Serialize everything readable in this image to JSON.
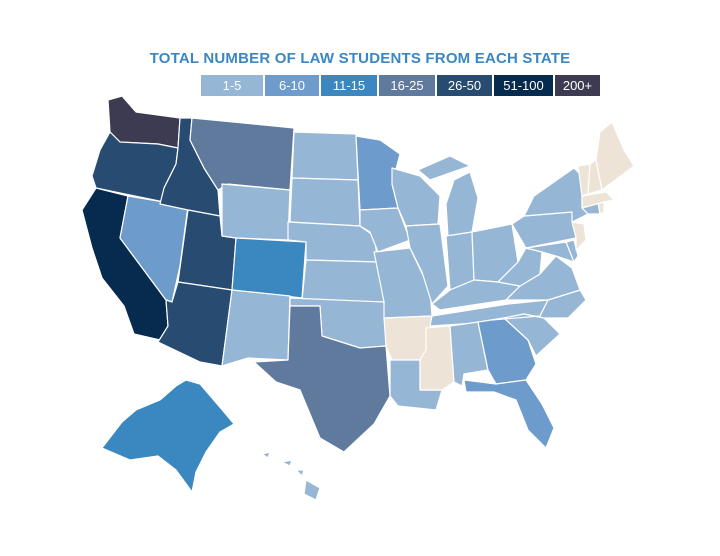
{
  "title": "TOTAL NUMBER OF LAW STUDENTS FROM EACH STATE",
  "legend": [
    {
      "label": "1-5",
      "color": "#96b6d6"
    },
    {
      "label": "6-10",
      "color": "#6d9bcb"
    },
    {
      "label": "11-15",
      "color": "#3b87bf"
    },
    {
      "label": "16-25",
      "color": "#5f7a9c"
    },
    {
      "label": "26-50",
      "color": "#284c71"
    },
    {
      "label": "51-100",
      "color": "#072a4f"
    },
    {
      "label": "200+",
      "color": "#3d3b52"
    }
  ],
  "no_data_color": "#ede3d6",
  "states": [
    {
      "id": "WA",
      "bin": "200+"
    },
    {
      "id": "OR",
      "bin": "26-50"
    },
    {
      "id": "CA",
      "bin": "51-100"
    },
    {
      "id": "ID",
      "bin": "26-50"
    },
    {
      "id": "NV",
      "bin": "6-10"
    },
    {
      "id": "UT",
      "bin": "26-50"
    },
    {
      "id": "AZ",
      "bin": "26-50"
    },
    {
      "id": "MT",
      "bin": "16-25"
    },
    {
      "id": "WY",
      "bin": "1-5"
    },
    {
      "id": "CO",
      "bin": "11-15"
    },
    {
      "id": "NM",
      "bin": "1-5"
    },
    {
      "id": "ND",
      "bin": "1-5"
    },
    {
      "id": "SD",
      "bin": "1-5"
    },
    {
      "id": "NE",
      "bin": "1-5"
    },
    {
      "id": "KS",
      "bin": "1-5"
    },
    {
      "id": "OK",
      "bin": "1-5"
    },
    {
      "id": "TX",
      "bin": "16-25"
    },
    {
      "id": "MN",
      "bin": "6-10"
    },
    {
      "id": "IA",
      "bin": "1-5"
    },
    {
      "id": "MO",
      "bin": "1-5"
    },
    {
      "id": "AR",
      "bin": "none"
    },
    {
      "id": "LA",
      "bin": "1-5"
    },
    {
      "id": "WI",
      "bin": "1-5"
    },
    {
      "id": "IL",
      "bin": "1-5"
    },
    {
      "id": "MI",
      "bin": "1-5"
    },
    {
      "id": "IN",
      "bin": "1-5"
    },
    {
      "id": "OH",
      "bin": "1-5"
    },
    {
      "id": "KY",
      "bin": "1-5"
    },
    {
      "id": "TN",
      "bin": "1-5"
    },
    {
      "id": "MS",
      "bin": "none"
    },
    {
      "id": "AL",
      "bin": "1-5"
    },
    {
      "id": "GA",
      "bin": "6-10"
    },
    {
      "id": "FL",
      "bin": "6-10"
    },
    {
      "id": "SC",
      "bin": "1-5"
    },
    {
      "id": "NC",
      "bin": "1-5"
    },
    {
      "id": "VA",
      "bin": "1-5"
    },
    {
      "id": "WV",
      "bin": "1-5"
    },
    {
      "id": "PA",
      "bin": "1-5"
    },
    {
      "id": "NY",
      "bin": "1-5"
    },
    {
      "id": "NJ",
      "bin": "none"
    },
    {
      "id": "DE",
      "bin": "1-5"
    },
    {
      "id": "MD",
      "bin": "1-5"
    },
    {
      "id": "CT",
      "bin": "1-5"
    },
    {
      "id": "RI",
      "bin": "none"
    },
    {
      "id": "MA",
      "bin": "none"
    },
    {
      "id": "VT",
      "bin": "none"
    },
    {
      "id": "NH",
      "bin": "none"
    },
    {
      "id": "ME",
      "bin": "none"
    },
    {
      "id": "AK",
      "bin": "11-15"
    },
    {
      "id": "HI",
      "bin": "1-5"
    }
  ]
}
